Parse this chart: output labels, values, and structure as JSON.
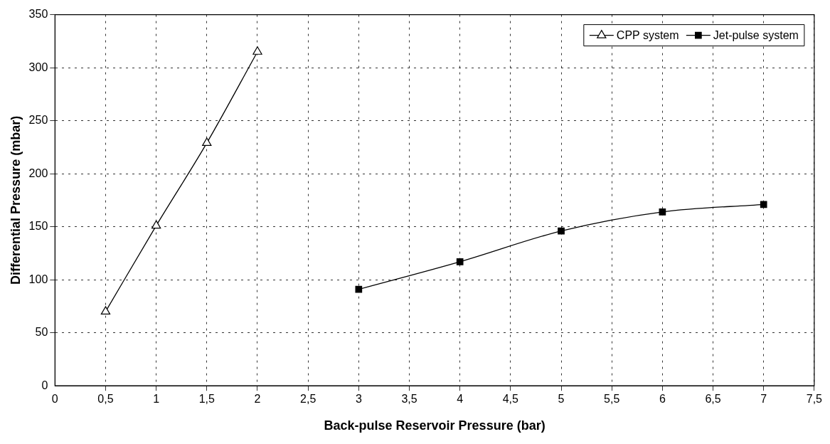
{
  "chart_data": {
    "type": "line",
    "xlabel": "Back-pulse Reservoir Pressure (bar)",
    "ylabel": "Differential Pressure (mbar)",
    "xlim": [
      0,
      7.5
    ],
    "xticks": [
      0,
      {
        "value": 0.5,
        "label": "0,5"
      },
      1,
      {
        "value": 1.5,
        "label": "1,5"
      },
      2,
      {
        "value": 2.5,
        "label": "2,5"
      },
      3,
      {
        "value": 3.5,
        "label": "3,5"
      },
      4,
      {
        "value": 4.5,
        "label": "4,5"
      },
      5,
      {
        "value": 5.5,
        "label": "5,5"
      },
      6,
      {
        "value": 6.5,
        "label": "6,5"
      },
      7,
      {
        "value": 7.5,
        "label": "7,5"
      }
    ],
    "ylim": [
      0,
      350
    ],
    "yticks": [
      0,
      50,
      100,
      150,
      200,
      250,
      300,
      350
    ],
    "grid": true,
    "legend": "top right",
    "line_style": "solid",
    "series": [
      {
        "name": "CPP system",
        "color": "#000000",
        "marker": "triangle",
        "x": [
          0.5,
          1,
          1.5,
          2
        ],
        "values": [
          70,
          151,
          229,
          315
        ]
      },
      {
        "name": "Jet-pulse system",
        "color": "#000000",
        "marker": "square",
        "x": [
          3,
          4,
          5,
          6,
          7
        ],
        "values": [
          91,
          117,
          146,
          164,
          171
        ]
      }
    ]
  }
}
